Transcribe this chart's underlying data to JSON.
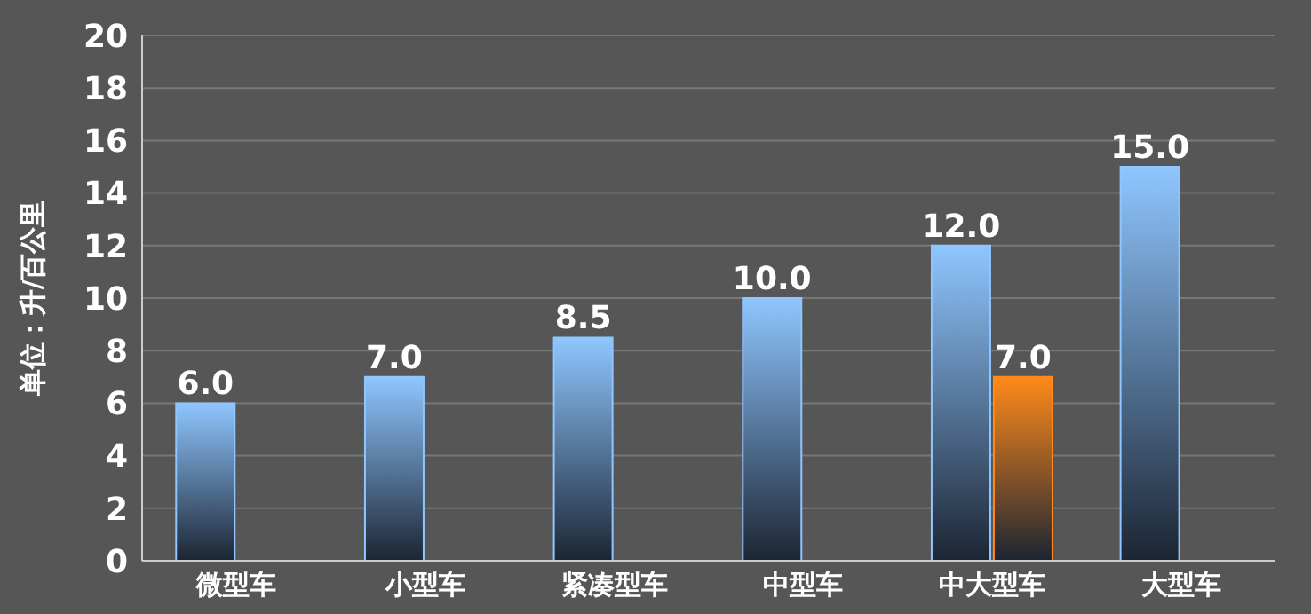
{
  "chart_data": {
    "type": "bar",
    "ylabel": "单位：升/百公里",
    "categories": [
      "微型车",
      "小型车",
      "紧凑型车",
      "中型车",
      "中大型车",
      "大型车"
    ],
    "series": [
      {
        "color": "#8fc6ff",
        "values": [
          6.0,
          7.0,
          8.5,
          10.0,
          12.0,
          15.0
        ],
        "value_labels": [
          "6.0",
          "7.0",
          "8.5",
          "10.0",
          "12.0",
          "15.0"
        ]
      },
      {
        "color": "#ff8a1a",
        "values": [
          null,
          null,
          null,
          null,
          7.0,
          null
        ],
        "value_labels": [
          null,
          null,
          null,
          null,
          "7.0",
          null
        ]
      }
    ],
    "ylim": [
      0,
      20
    ],
    "yticks": [
      0,
      2,
      4,
      6,
      8,
      10,
      12,
      14,
      16,
      18,
      20
    ],
    "grid": "y"
  }
}
